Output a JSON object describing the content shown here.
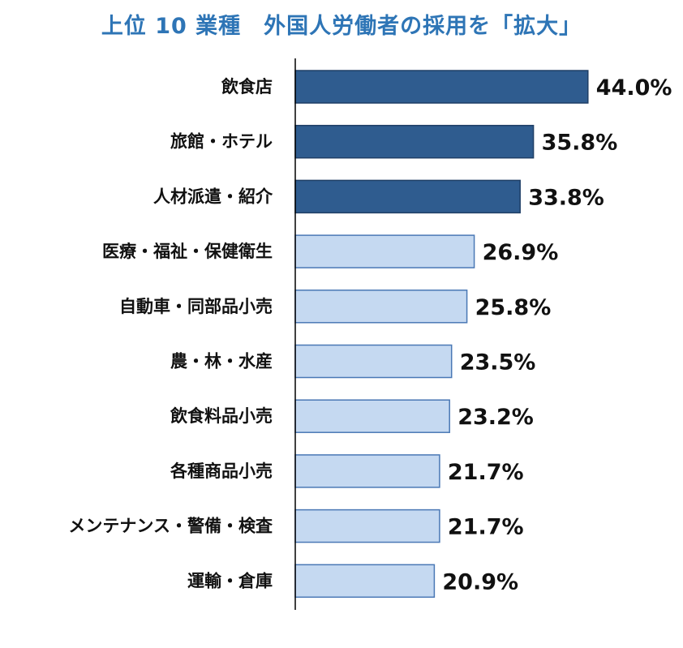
{
  "chart_data": {
    "type": "bar",
    "orientation": "horizontal",
    "title": "上位 10 業種　外国人労働者の採用を「拡大」",
    "categories": [
      "飲食店",
      "旅館・ホテル",
      "人材派遣・紹介",
      "医療・福祉・保健衛生",
      "自動車・同部品小売",
      "農・林・水産",
      "飲食料品小売",
      "各種商品小売",
      "メンテナンス・警備・検査",
      "運輸・倉庫"
    ],
    "values": [
      44.0,
      35.8,
      33.8,
      26.9,
      25.8,
      23.5,
      23.2,
      21.7,
      21.7,
      20.9
    ],
    "value_labels": [
      "44.0%",
      "35.8%",
      "33.8%",
      "26.9%",
      "25.8%",
      "23.5%",
      "23.2%",
      "21.7%",
      "21.7%",
      "20.9%"
    ],
    "highlight_top": 3,
    "colors": {
      "highlight_fill": "#2f5c8f",
      "highlight_stroke": "#1f3f66",
      "normal_fill": "#c5d9f1",
      "normal_stroke": "#4a78b5",
      "title": "#2e75b6",
      "axis": "#000000"
    },
    "xlabel": "",
    "ylabel": "",
    "grid": false,
    "legend": "none"
  }
}
